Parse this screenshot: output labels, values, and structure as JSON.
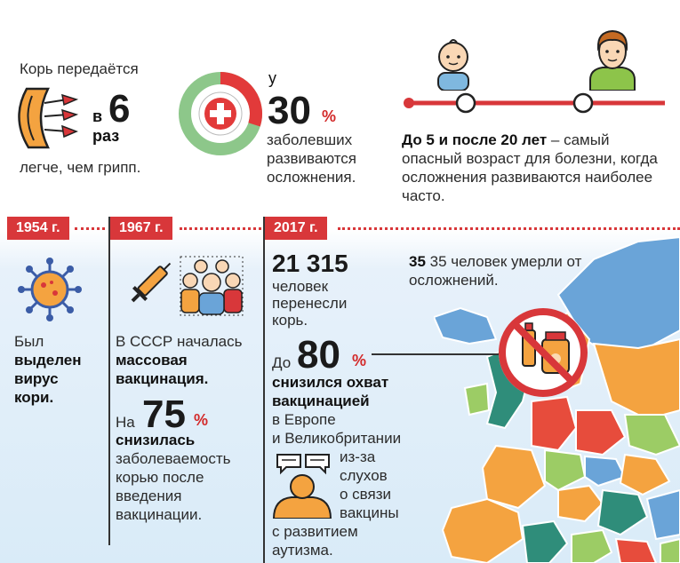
{
  "top": {
    "transmission": {
      "title": "Корь передаётся",
      "prefix": "в",
      "number": "6",
      "unit": "раз",
      "caption": "легче, чем грипп."
    },
    "complications": {
      "prefix": "у",
      "number": "30",
      "percent": "%",
      "text": [
        "заболевших",
        "развиваются",
        "осложнения."
      ],
      "chart_share": 0.3
    },
    "age": {
      "bold": "До 5 и после 20 лет",
      "rest": " – самый опасный возраст для болезни, когда осложнения развиваются наиболее часто."
    }
  },
  "timeline": [
    {
      "year": "1954 г.",
      "lines": [
        {
          "text": "Был",
          "bold": false
        },
        {
          "text": "выделен",
          "bold": true
        },
        {
          "text": "вирус",
          "bold": true
        },
        {
          "text": "кори.",
          "bold": true
        }
      ]
    },
    {
      "year": "1967 г.",
      "line1": "В СССР началась",
      "line2": "массовая",
      "line3": "вакцинация.",
      "prefix": "На",
      "number": "75",
      "percent": "%",
      "bold": "снизилась",
      "rest": [
        "заболеваемость",
        "корью после",
        "введения",
        "вакцинации."
      ]
    },
    {
      "year": "2017 г.",
      "number": "21 315",
      "people": [
        "человек",
        "перенесли",
        "корь."
      ],
      "deaths": "35 человек умерли от осложнений.",
      "prefix": "До",
      "number2": "80",
      "percent": "%",
      "bold": [
        "снизился охват",
        "вакцинацией"
      ],
      "regions": [
        "в Европе",
        "и Великобритании"
      ],
      "rumor_right": [
        "из-за",
        "слухов",
        "о связи",
        "вакцины"
      ],
      "rumor_bottom": [
        "с развитием",
        "аутизма."
      ]
    }
  ],
  "colors": {
    "accent_red": "#d8373a",
    "green_ring": "#8dc78a",
    "map_blue": "#6aa4d8",
    "map_orange": "#f4a340",
    "map_green": "#9ccc65"
  },
  "icons": [
    "virus-particles-icon",
    "red-cross-icon",
    "baby-icon",
    "man-icon",
    "virus-icon",
    "syringe-icon",
    "people-group-icon",
    "no-vaccine-icon",
    "speech-bubbles-icon",
    "person-silhouette-icon",
    "europe-map"
  ]
}
